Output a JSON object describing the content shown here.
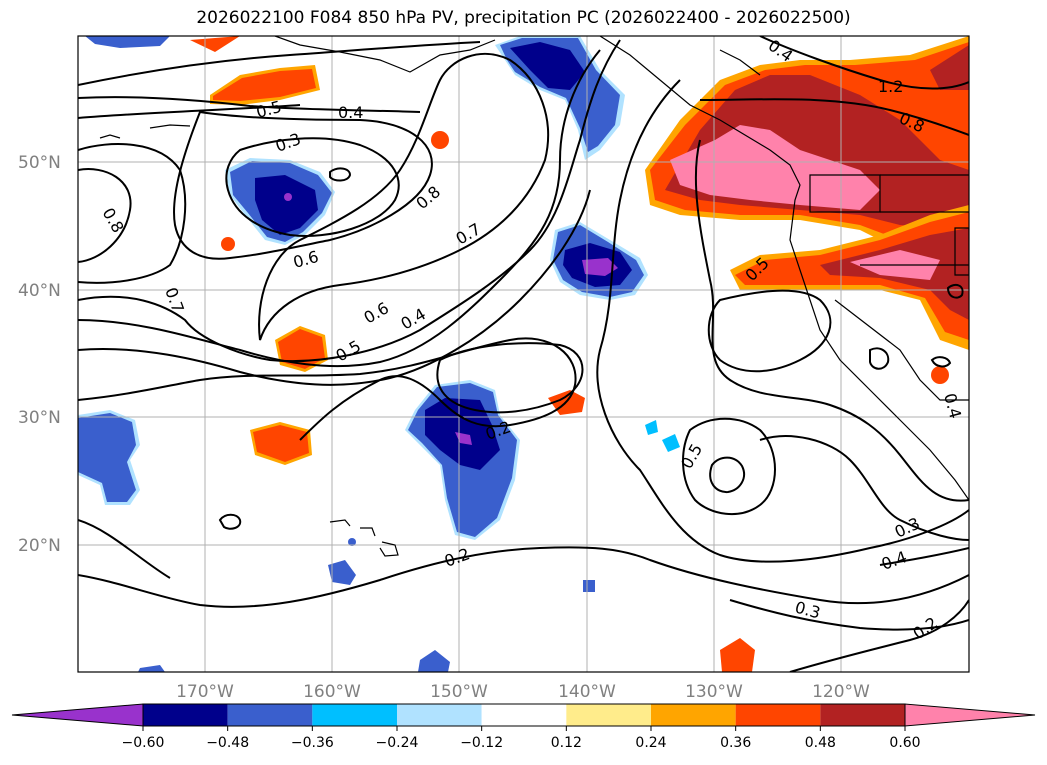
{
  "title": "2026022100 F084 850 hPa PV, precipitation PC (2026022400 - 2026022500)",
  "axes": {
    "lat_labels": [
      "50°N",
      "40°N",
      "30°N",
      "20°N"
    ],
    "lon_labels": [
      "170°W",
      "160°W",
      "150°W",
      "140°W",
      "130°W",
      "120°W"
    ]
  },
  "contour_labels": [
    "0.5",
    "0.4",
    "0.3",
    "0.8",
    "0.7",
    "0.6",
    "0.6",
    "0.5",
    "0.4",
    "0.8",
    "0.7",
    "0.2",
    "0.5",
    "0.2",
    "1.2",
    "0.8",
    "0.5",
    "0.4",
    "0.3",
    "0.4",
    "0.3",
    "0.2",
    "0.4"
  ],
  "colorbar": {
    "ticks": [
      "−0.60",
      "−0.48",
      "−0.36",
      "−0.24",
      "−0.12",
      "0.12",
      "0.24",
      "0.36",
      "0.48",
      "0.60"
    ],
    "colors": [
      "#9932CC",
      "#00008B",
      "#3A5FCD",
      "#00BFFF",
      "#B0E2FF",
      "#FFFFFF",
      "#FFEC8B",
      "#FFA500",
      "#FF4500",
      "#B22222",
      "#FF82AB"
    ]
  }
}
